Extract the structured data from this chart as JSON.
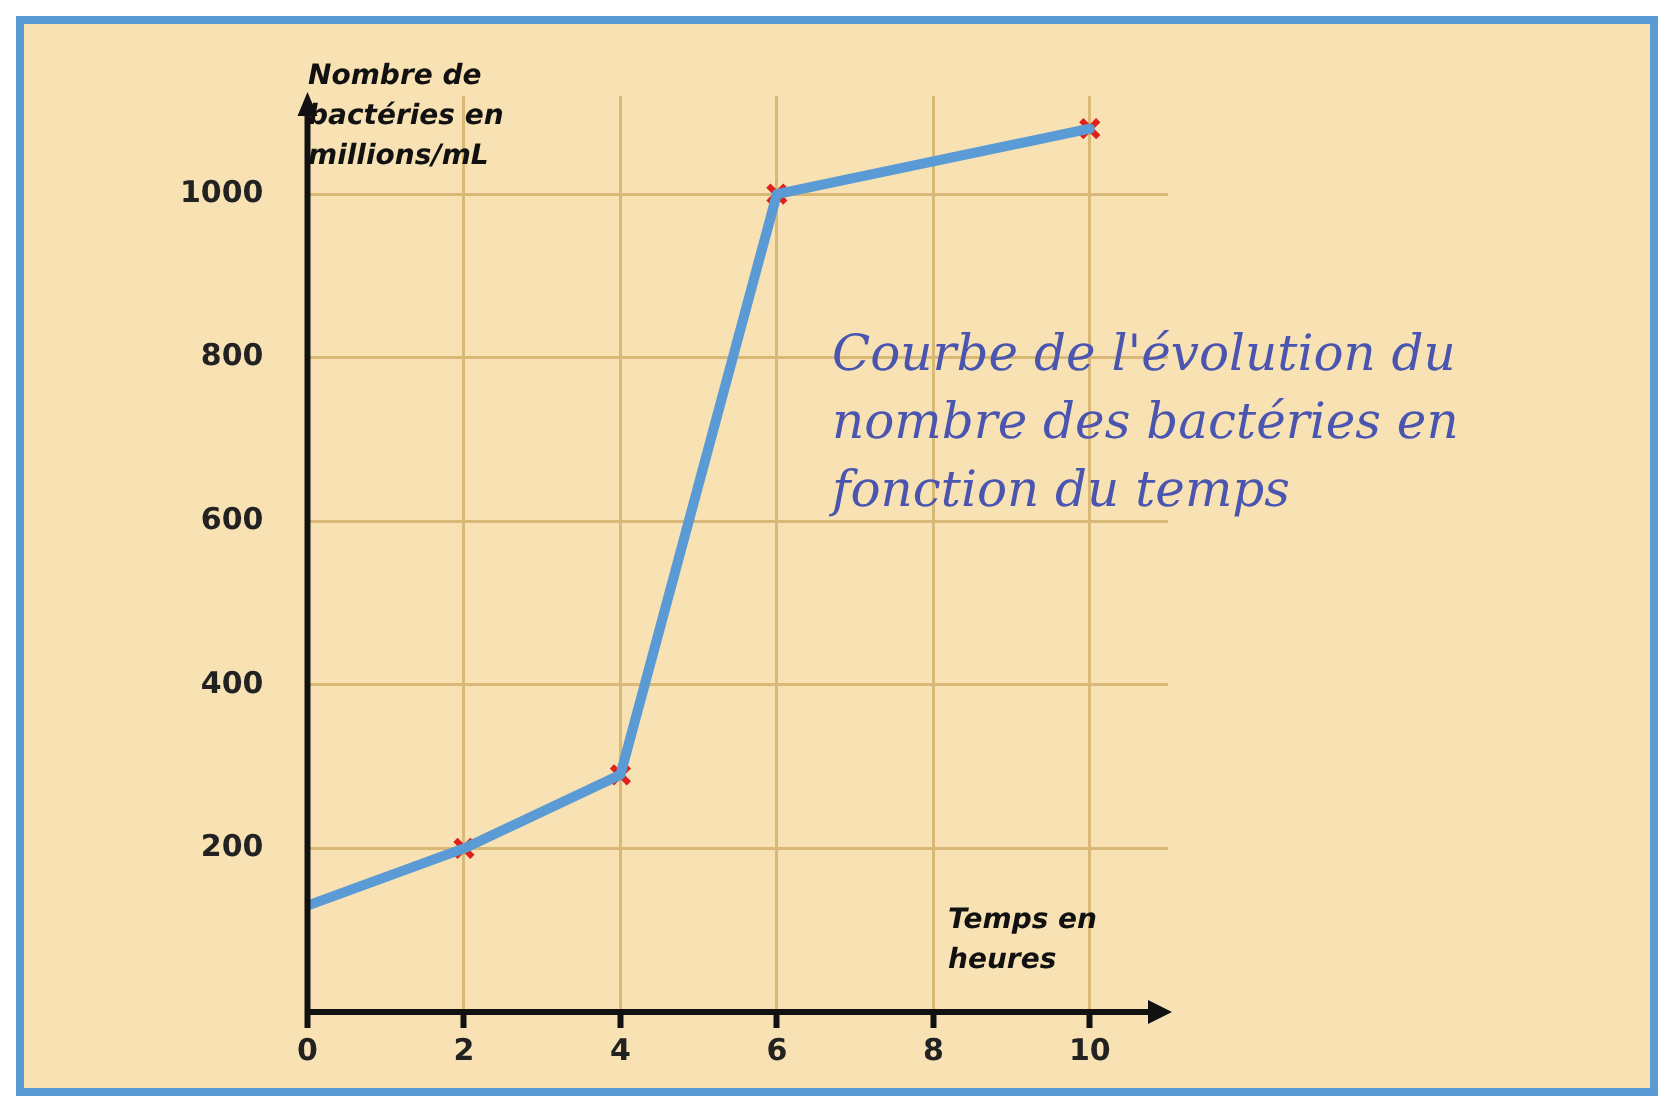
{
  "chart_data": {
    "type": "line",
    "title": "Courbe de l'évolution du nombre des bactéries en fonction du temps",
    "xlabel": "Temps en heures",
    "ylabel": "Nombre de bactéries en millions/mL",
    "x": [
      0,
      2,
      4,
      6,
      10
    ],
    "series": [
      {
        "color": "#5b9bd5",
        "marker": "none",
        "values": [
          130,
          200,
          290,
          1000,
          1080
        ]
      },
      {
        "type": "scatter",
        "color": "#e0201a",
        "marker": "cross",
        "x": [
          2,
          4,
          6,
          10
        ],
        "values": [
          200,
          290,
          1000,
          1080
        ]
      }
    ],
    "xlim": [
      0,
      11
    ],
    "xticks": [
      0,
      2,
      4,
      6,
      8,
      10
    ],
    "ylim": [
      0,
      1120
    ],
    "yticks": [
      200,
      400,
      600,
      800,
      1000
    ],
    "grid": true,
    "legend": false
  }
}
